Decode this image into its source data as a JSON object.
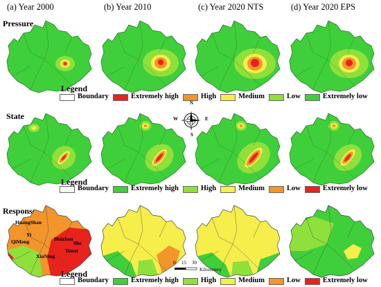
{
  "columns": [
    "(a) Year 2000",
    "(b) Year 2010",
    "(c) Year 2020 NTS",
    "(d) Year 2020 EPS"
  ],
  "rows": {
    "pressure": "Pressure",
    "state": "State",
    "response": "Response"
  },
  "legends": {
    "pressure": {
      "title": "Legend",
      "items": [
        {
          "label": "Boundary",
          "color": "#ffffff"
        },
        {
          "label": "Extremely high",
          "color": "#e8221c"
        },
        {
          "label": "High",
          "color": "#f2952a"
        },
        {
          "label": "Medium",
          "color": "#f5ee4b"
        },
        {
          "label": "Low",
          "color": "#8fe03b"
        },
        {
          "label": "Extremely low",
          "color": "#3fcf3a"
        }
      ]
    },
    "state": {
      "title": "Legend",
      "items": [
        {
          "label": "Boundary",
          "color": "#ffffff"
        },
        {
          "label": "Extremely high",
          "color": "#3fcf3a"
        },
        {
          "label": "High",
          "color": "#8fe03b"
        },
        {
          "label": "Medium",
          "color": "#f5ee4b"
        },
        {
          "label": "Low",
          "color": "#f2952a"
        },
        {
          "label": "Extremely low",
          "color": "#e8221c"
        }
      ]
    },
    "response": {
      "title": "Legend",
      "items": [
        {
          "label": "Boundary",
          "color": "#ffffff"
        },
        {
          "label": "Extremely high",
          "color": "#3fcf3a"
        },
        {
          "label": "High",
          "color": "#8fe03b"
        },
        {
          "label": "Medium",
          "color": "#f5ee4b"
        },
        {
          "label": "Low",
          "color": "#f2952a"
        },
        {
          "label": "Extremely low",
          "color": "#e8221c"
        }
      ]
    }
  },
  "places": {
    "huangshan": "HuangShan",
    "yi": "Yi",
    "qimeng": "QiMeng",
    "huizhou": "Huizhou",
    "she": "She",
    "tunxi": "Tunxi",
    "xiuning": "XiuNing"
  },
  "compass": {
    "n": "N",
    "s": "S",
    "e": "E",
    "w": "W"
  },
  "scale": {
    "ticks": [
      "0",
      "15",
      "30"
    ],
    "unit": "Kilometers"
  }
}
